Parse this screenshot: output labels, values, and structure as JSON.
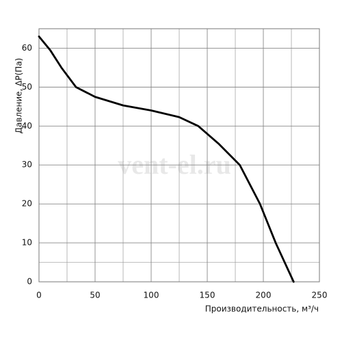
{
  "chart_data": {
    "type": "line",
    "y_label": "Давление, ΔP(Па)",
    "x_label": "Производительность, м³/ч",
    "watermark": "vent-el.ru",
    "x": [
      0,
      10,
      20,
      33,
      50,
      75,
      100,
      125,
      142,
      160,
      179,
      197,
      211,
      227
    ],
    "series": [
      {
        "color": "#000000",
        "values": [
          63,
          59.5,
          55,
          50,
          47.5,
          45.3,
          44,
          42.3,
          40,
          35.5,
          30,
          20,
          10,
          0
        ]
      }
    ],
    "xlim": [
      0,
      250
    ],
    "ylim": [
      0,
      65
    ],
    "xticks": [
      0,
      50,
      100,
      150,
      200,
      250
    ],
    "yticks": [
      0,
      10,
      20,
      30,
      40,
      50,
      60
    ],
    "minor_xticks": [
      25,
      75,
      125,
      175,
      225
    ],
    "minor_yticks": [
      5
    ],
    "grid": true
  }
}
